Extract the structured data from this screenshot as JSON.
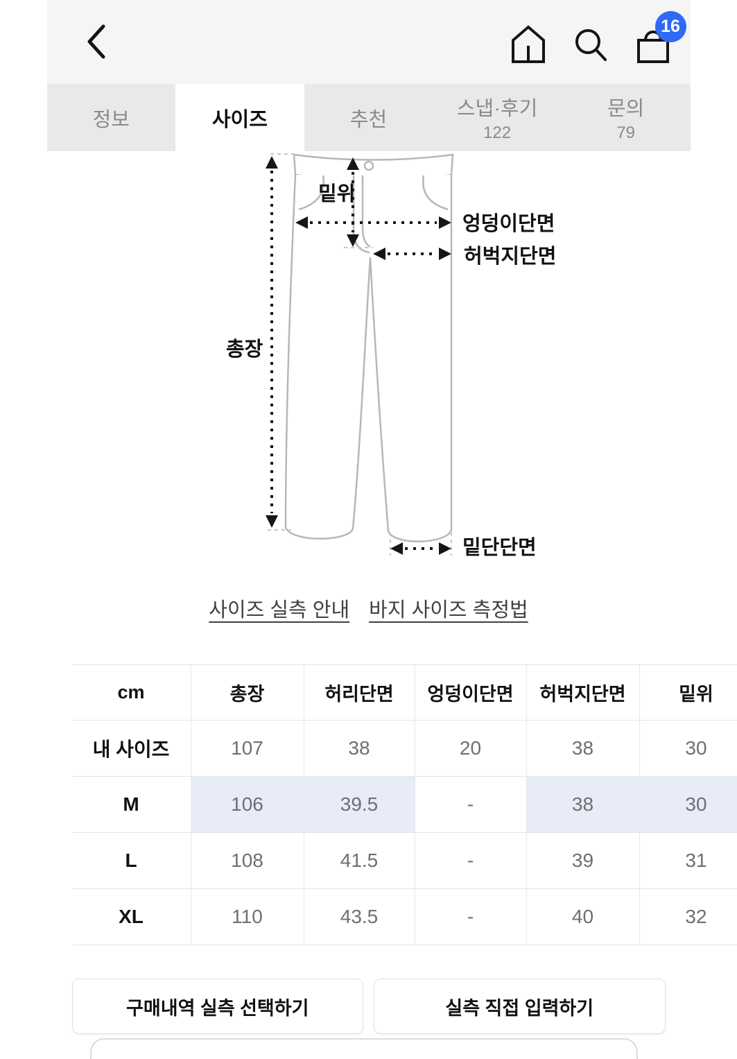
{
  "topbar": {
    "cart_badge": "16"
  },
  "tabs": [
    {
      "label": "정보",
      "count": ""
    },
    {
      "label": "사이즈",
      "count": ""
    },
    {
      "label": "추천",
      "count": ""
    },
    {
      "label": "스냅·후기",
      "count": "122"
    },
    {
      "label": "문의",
      "count": "79"
    }
  ],
  "diagram": {
    "labels": {
      "total_length": "총장",
      "rise": "밑위",
      "hip": "엉덩이단면",
      "thigh": "허벅지단면",
      "hem": "밑단단면"
    }
  },
  "links": {
    "size_guide": "사이즈 실측 안내",
    "pants_measure": "바지 사이즈 측정법"
  },
  "size_table": {
    "columns": [
      "cm",
      "총장",
      "허리단면",
      "엉덩이단면",
      "허벅지단면",
      "밑위"
    ],
    "rows": [
      {
        "label": "내 사이즈",
        "values": [
          "107",
          "38",
          "20",
          "38",
          "30"
        ],
        "highlight": false
      },
      {
        "label": "M",
        "values": [
          "106",
          "39.5",
          "-",
          "38",
          "30"
        ],
        "highlight": true
      },
      {
        "label": "L",
        "values": [
          "108",
          "41.5",
          "-",
          "39",
          "31"
        ],
        "highlight": false
      },
      {
        "label": "XL",
        "values": [
          "110",
          "43.5",
          "-",
          "40",
          "32"
        ],
        "highlight": false
      }
    ]
  },
  "buttons": {
    "purchase_history": "구매내역 실측 선택하기",
    "manual_input": "실측 직접 입력하기"
  }
}
